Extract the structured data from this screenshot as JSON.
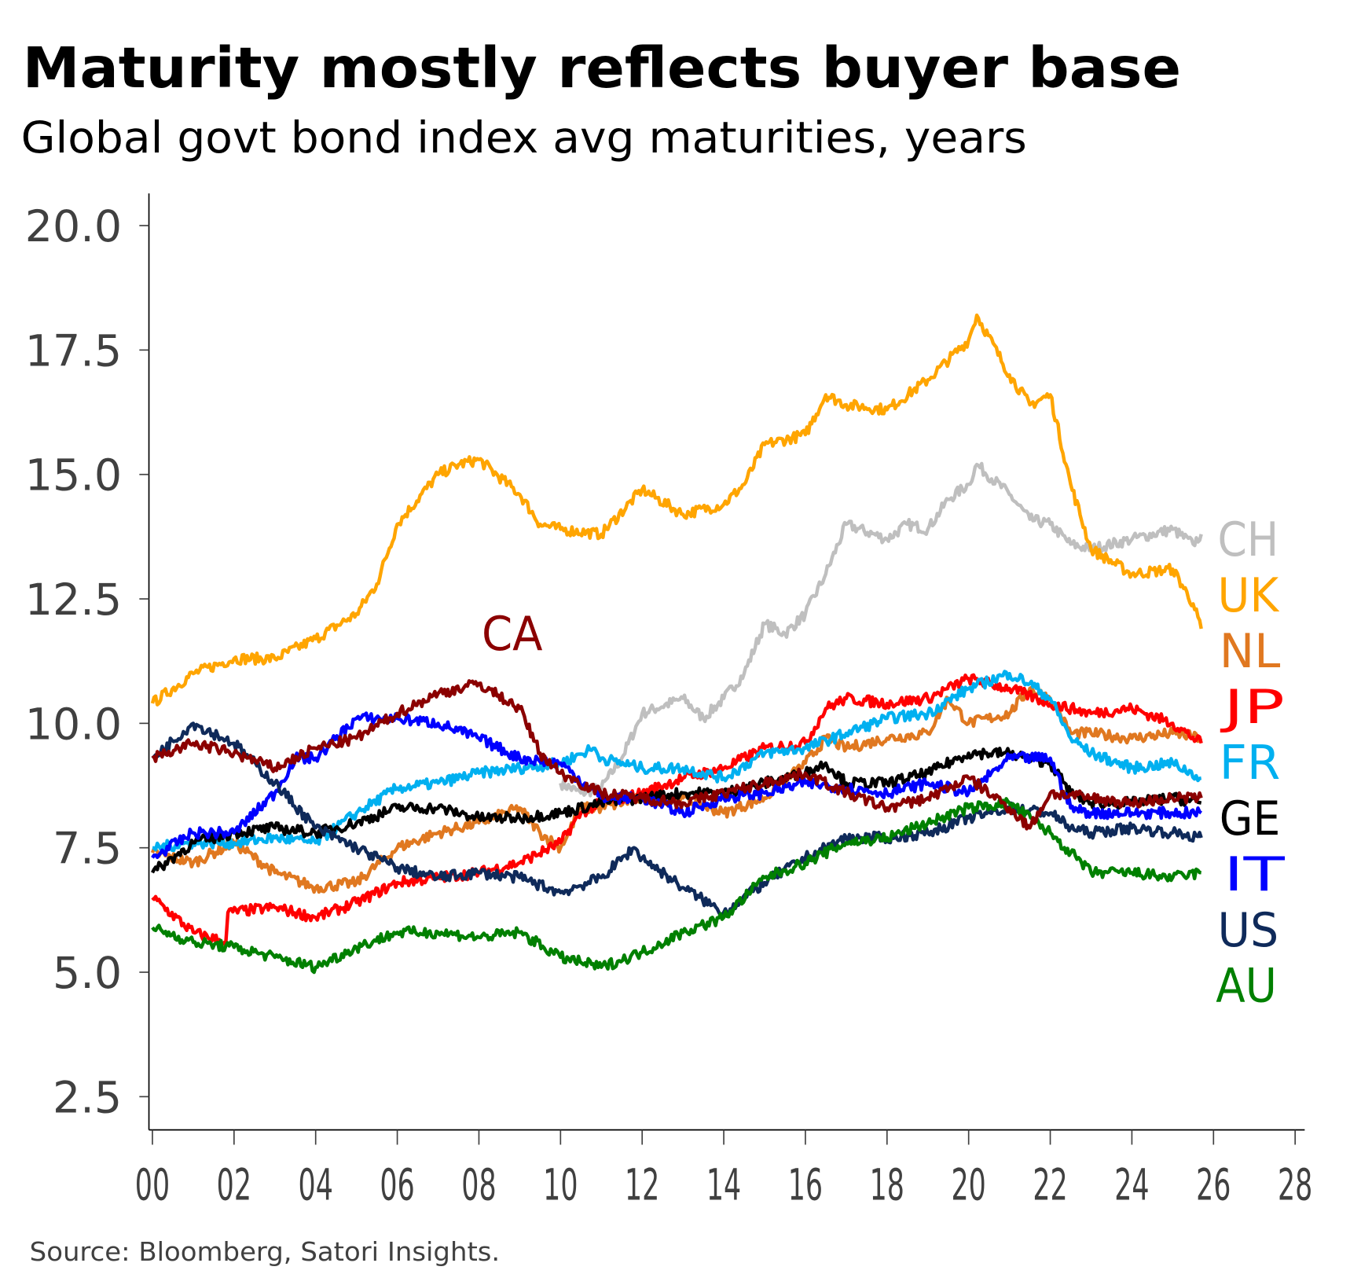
{
  "chart_data": {
    "type": "line",
    "title": "Maturity mostly reflects buyer base",
    "subtitle": "Global govt bond index avg maturities, years",
    "source": "Source: Bloomberg, Satori Insights.",
    "xlabel": "",
    "ylabel": "",
    "xlim": [
      0,
      28
    ],
    "ylim": [
      1.7,
      20.6
    ],
    "x_ticks": [
      0,
      2,
      4,
      6,
      8,
      10,
      12,
      14,
      16,
      18,
      20,
      22,
      24,
      26,
      28
    ],
    "x_tick_labels": [
      "00",
      "02",
      "04",
      "06",
      "08",
      "10",
      "12",
      "14",
      "16",
      "18",
      "20",
      "22",
      "24",
      "26",
      "28"
    ],
    "y_ticks": [
      2.5,
      5,
      7.5,
      10,
      12.5,
      15,
      17.5,
      20
    ],
    "y_tick_labels": [
      "2.5",
      "5.0",
      "7.5",
      "10.0",
      "12.5",
      "15.0",
      "17.5",
      "20.0"
    ],
    "grid": false,
    "series": [
      {
        "name": "CH",
        "color": "#BFBFBF",
        "x": [
          10,
          10.5,
          11,
          11.5,
          12,
          13,
          13.5,
          14,
          14.5,
          15,
          15.5,
          16,
          16.5,
          17,
          18,
          18.5,
          19,
          19.5,
          20,
          20.2,
          21,
          21.5,
          22,
          22.5,
          23,
          24,
          25,
          25.5,
          25.7
        ],
        "y": [
          8.8,
          8.6,
          8.7,
          9.3,
          10.2,
          10.5,
          10.1,
          10.5,
          11.0,
          12.0,
          11.8,
          12.2,
          13.0,
          14.0,
          13.7,
          14.0,
          13.9,
          14.5,
          14.8,
          15.2,
          14.6,
          14.1,
          14.0,
          13.6,
          13.5,
          13.7,
          13.9,
          13.6,
          13.8
        ]
      },
      {
        "name": "UK",
        "color": "#FFA500",
        "x": [
          0,
          1,
          2,
          3,
          4,
          5,
          5.5,
          6,
          7,
          7.5,
          8,
          9,
          9.5,
          10,
          11,
          12,
          13,
          14,
          14.5,
          15,
          16,
          16.5,
          17,
          18,
          19,
          20,
          20.2,
          21,
          21.5,
          22,
          22.5,
          23,
          24,
          25,
          25.5,
          25.7
        ],
        "y": [
          10.4,
          11.0,
          11.3,
          11.3,
          11.7,
          12.2,
          12.8,
          14.0,
          15.0,
          15.2,
          15.3,
          14.6,
          14.0,
          13.9,
          13.8,
          14.7,
          14.2,
          14.4,
          14.8,
          15.6,
          15.8,
          16.6,
          16.4,
          16.3,
          16.9,
          17.7,
          18.2,
          17.0,
          16.4,
          16.6,
          14.8,
          13.5,
          13.0,
          13.1,
          12.4,
          11.9
        ]
      },
      {
        "name": "NL",
        "color": "#E07820",
        "x": [
          0,
          1,
          2,
          3,
          4,
          5,
          6,
          7,
          8,
          9,
          9.5,
          10,
          10.5,
          11,
          12,
          13,
          14,
          15,
          16,
          16.5,
          17,
          18,
          19,
          19.5,
          20,
          21,
          21.5,
          22,
          22.5,
          23,
          24,
          25,
          25.7
        ],
        "y": [
          7.4,
          7.2,
          7.6,
          7.0,
          6.7,
          6.8,
          7.5,
          7.8,
          8.0,
          8.3,
          7.8,
          7.5,
          8.3,
          8.3,
          8.5,
          8.5,
          8.2,
          8.5,
          9.2,
          9.7,
          9.5,
          9.7,
          9.8,
          10.5,
          10.0,
          10.2,
          10.7,
          10.5,
          9.8,
          9.8,
          9.7,
          9.8,
          9.7
        ]
      },
      {
        "name": "JP",
        "color": "#FF0000",
        "x": [
          0,
          1,
          1.8,
          1.85,
          3,
          4,
          5,
          6,
          7,
          8,
          9,
          10,
          10.5,
          11,
          12,
          13,
          14,
          15,
          16,
          16.5,
          17,
          18,
          19,
          20,
          21,
          22,
          23,
          24,
          25,
          25.7
        ],
        "y": [
          6.5,
          5.8,
          5.6,
          6.2,
          6.3,
          6.1,
          6.4,
          6.8,
          6.9,
          7.0,
          7.2,
          7.6,
          8.2,
          8.4,
          8.6,
          8.9,
          9.1,
          9.5,
          9.6,
          10.3,
          10.5,
          10.4,
          10.5,
          10.9,
          10.7,
          10.4,
          10.2,
          10.3,
          10.0,
          9.6
        ]
      },
      {
        "name": "FR",
        "color": "#00B0F0",
        "x": [
          0,
          1,
          2,
          3,
          4,
          5,
          6,
          7,
          8,
          9,
          10,
          10.8,
          11,
          12,
          13,
          14,
          15,
          16,
          17,
          18,
          19,
          20,
          21,
          21.5,
          22,
          22.5,
          23,
          24,
          25,
          25.7
        ],
        "y": [
          7.5,
          7.6,
          7.6,
          7.7,
          7.6,
          8.2,
          8.7,
          8.8,
          9.0,
          9.1,
          9.2,
          9.5,
          9.3,
          9.1,
          9.1,
          8.9,
          9.4,
          9.5,
          9.8,
          10.1,
          10.2,
          10.7,
          11.0,
          10.8,
          10.5,
          9.7,
          9.4,
          9.1,
          9.2,
          8.9
        ]
      },
      {
        "name": "GE",
        "color": "#000000",
        "x": [
          0,
          1,
          2,
          3,
          4,
          5,
          6,
          7,
          8,
          9,
          10,
          11,
          12,
          13,
          14,
          15,
          16,
          16.5,
          17,
          18,
          19,
          20,
          21,
          22,
          22.5,
          23,
          24,
          25,
          25.7
        ],
        "y": [
          7.0,
          7.6,
          7.8,
          7.9,
          7.8,
          8.0,
          8.3,
          8.3,
          8.1,
          8.1,
          8.2,
          8.4,
          8.5,
          8.6,
          8.6,
          8.8,
          9.0,
          9.2,
          8.8,
          8.8,
          9.0,
          9.4,
          9.4,
          9.2,
          8.6,
          8.4,
          8.4,
          8.5,
          8.4
        ]
      },
      {
        "name": "IT",
        "color": "#0000FF",
        "x": [
          0,
          1,
          2,
          3,
          3.5,
          4,
          5,
          6,
          7,
          8,
          9,
          10,
          11,
          12,
          13,
          14,
          15,
          16,
          17,
          18,
          19,
          20,
          21,
          22,
          22.5,
          23,
          24,
          25,
          25.7
        ],
        "y": [
          7.3,
          7.8,
          7.8,
          8.6,
          9.3,
          9.3,
          10.1,
          10.1,
          10.0,
          9.7,
          9.3,
          9.2,
          8.5,
          8.5,
          8.2,
          8.5,
          8.6,
          8.8,
          8.7,
          8.6,
          8.8,
          8.6,
          9.3,
          9.3,
          8.3,
          8.2,
          8.2,
          8.2,
          8.2
        ]
      },
      {
        "name": "US",
        "color": "#0F2A5A",
        "x": [
          0,
          1,
          2,
          3,
          4,
          5,
          6,
          7,
          8,
          9,
          10,
          11,
          11.8,
          12,
          13,
          14,
          15,
          16,
          17,
          18,
          19,
          20,
          21,
          22,
          22.5,
          23,
          24,
          25,
          25.7
        ],
        "y": [
          9.3,
          10.0,
          9.6,
          8.8,
          7.9,
          7.5,
          7.1,
          6.9,
          7.0,
          6.9,
          6.6,
          6.9,
          7.5,
          7.3,
          6.7,
          6.2,
          6.8,
          7.3,
          7.7,
          7.7,
          7.8,
          8.1,
          8.3,
          8.2,
          7.9,
          7.8,
          7.9,
          7.8,
          7.7
        ]
      },
      {
        "name": "AU",
        "color": "#008000",
        "x": [
          0,
          1,
          2,
          3,
          4,
          5,
          6,
          7,
          8,
          9,
          10,
          11,
          12,
          13,
          14,
          15,
          16,
          17,
          18,
          19,
          20,
          21,
          22,
          22.5,
          23,
          24,
          25,
          25.7
        ],
        "y": [
          5.9,
          5.6,
          5.5,
          5.3,
          5.1,
          5.5,
          5.8,
          5.8,
          5.7,
          5.8,
          5.3,
          5.1,
          5.4,
          5.8,
          6.1,
          6.9,
          7.2,
          7.6,
          7.7,
          8.0,
          8.3,
          8.4,
          7.8,
          7.4,
          7.0,
          7.0,
          6.9,
          7.0
        ]
      },
      {
        "name": "CA",
        "color": "#8B0000",
        "x": [
          0,
          1,
          2,
          3,
          4,
          5,
          6,
          7,
          8,
          9,
          9.5,
          10,
          11,
          12,
          13,
          14,
          15,
          16,
          17,
          18,
          19,
          20,
          21,
          21.5,
          22,
          23,
          24,
          25,
          25.7
        ],
        "y": [
          9.3,
          9.6,
          9.4,
          9.1,
          9.5,
          9.7,
          10.2,
          10.6,
          10.8,
          10.3,
          9.4,
          9.0,
          8.6,
          8.5,
          8.4,
          8.6,
          8.8,
          9.0,
          8.6,
          8.3,
          8.5,
          8.9,
          8.3,
          7.9,
          8.6,
          8.5,
          8.4,
          8.5,
          8.5
        ]
      }
    ]
  }
}
